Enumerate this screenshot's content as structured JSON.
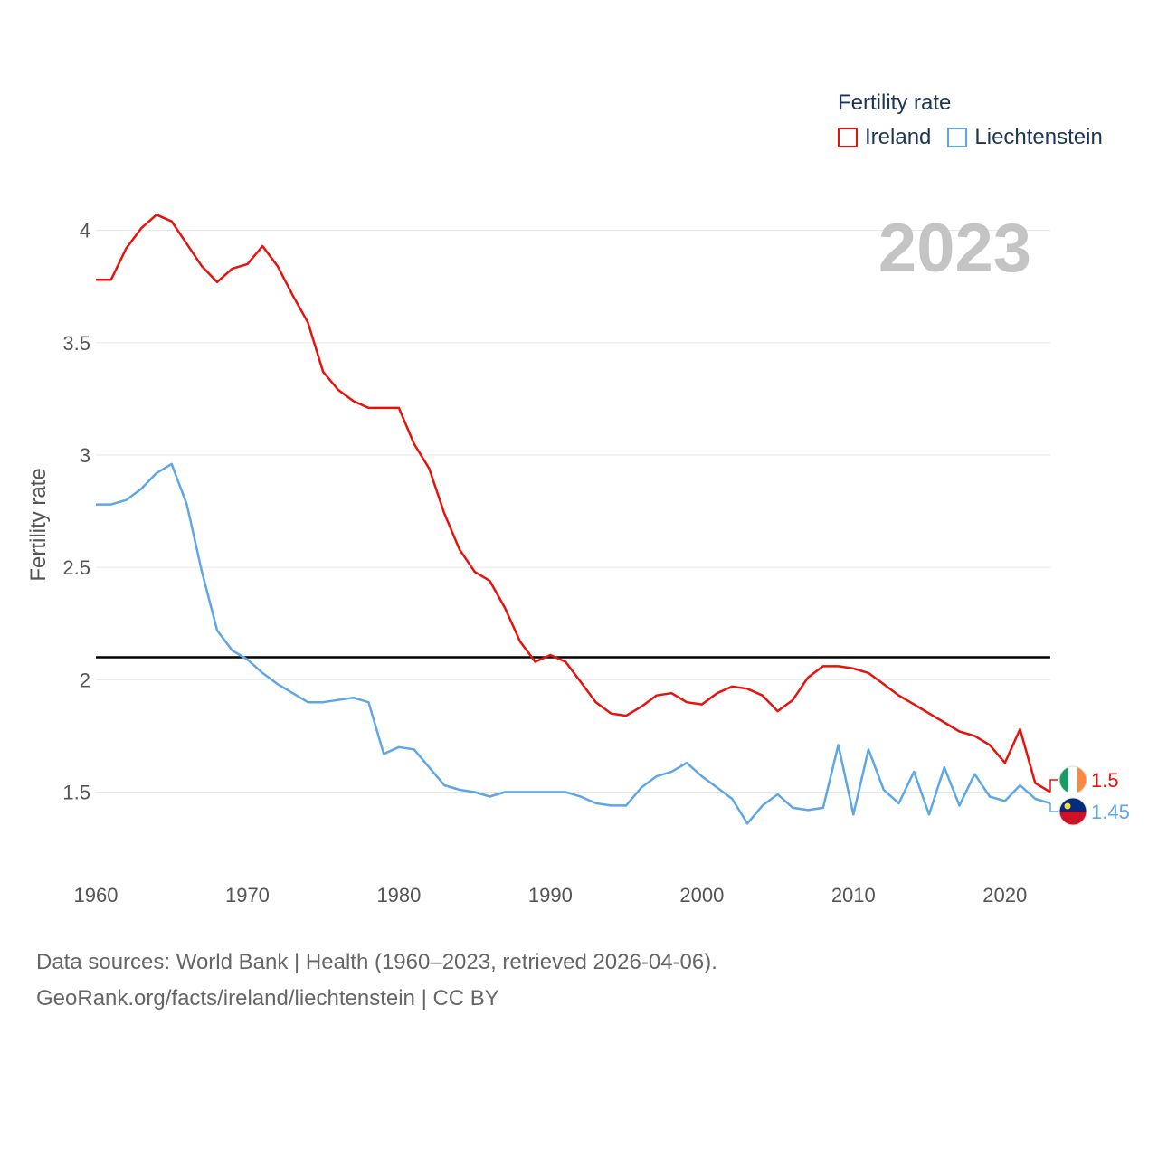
{
  "legend": {
    "title": "Fertility rate",
    "items": [
      {
        "label": "Ireland",
        "color": "#e8120c"
      },
      {
        "label": "Liechtenstein",
        "color": "#5ea7e6"
      }
    ]
  },
  "sources": {
    "line1": "Data sources: World Bank | Health (1960–2023, retrieved 2026-04-06).",
    "line2": "GeoRank.org/facts/ireland/liechtenstein | CC BY"
  },
  "chart_data": {
    "type": "line",
    "title": "Fertility rate",
    "year_label": "2023",
    "ylabel": "Fertility rate",
    "xlabel": "",
    "xlim": [
      1960,
      2023
    ],
    "ylim": [
      1.2,
      4.2
    ],
    "x_ticks": [
      "1960",
      "1970",
      "1980",
      "1990",
      "2000",
      "2010",
      "2020"
    ],
    "y_ticks": [
      "1.5",
      "2",
      "2.5",
      "3",
      "3.5",
      "4"
    ],
    "reference_line": {
      "value": 2.1,
      "color": "#000000"
    },
    "x": [
      1960,
      1961,
      1962,
      1963,
      1964,
      1965,
      1966,
      1967,
      1968,
      1969,
      1970,
      1971,
      1972,
      1973,
      1974,
      1975,
      1976,
      1977,
      1978,
      1979,
      1980,
      1981,
      1982,
      1983,
      1984,
      1985,
      1986,
      1987,
      1988,
      1989,
      1990,
      1991,
      1992,
      1993,
      1994,
      1995,
      1996,
      1997,
      1998,
      1999,
      2000,
      2001,
      2002,
      2003,
      2004,
      2005,
      2006,
      2007,
      2008,
      2009,
      2010,
      2011,
      2012,
      2013,
      2014,
      2015,
      2016,
      2017,
      2018,
      2019,
      2020,
      2021,
      2022,
      2023
    ],
    "series": [
      {
        "name": "Ireland",
        "color": "#e8120c",
        "end_label": "1.5",
        "values": [
          3.78,
          3.78,
          3.92,
          4.01,
          4.07,
          4.04,
          3.94,
          3.84,
          3.77,
          3.83,
          3.85,
          3.93,
          3.84,
          3.71,
          3.59,
          3.37,
          3.29,
          3.24,
          3.21,
          3.21,
          3.21,
          3.05,
          2.94,
          2.74,
          2.58,
          2.48,
          2.44,
          2.32,
          2.17,
          2.08,
          2.11,
          2.08,
          1.99,
          1.9,
          1.85,
          1.84,
          1.88,
          1.93,
          1.94,
          1.9,
          1.89,
          1.94,
          1.97,
          1.96,
          1.93,
          1.86,
          1.91,
          2.01,
          2.06,
          2.06,
          2.05,
          2.03,
          1.98,
          1.93,
          1.89,
          1.85,
          1.81,
          1.77,
          1.75,
          1.71,
          1.63,
          1.78,
          1.54,
          1.5
        ]
      },
      {
        "name": "Liechtenstein",
        "color": "#5ea7e6",
        "end_label": "1.45",
        "values": [
          2.78,
          2.78,
          2.8,
          2.85,
          2.92,
          2.96,
          2.78,
          2.48,
          2.22,
          2.13,
          2.09,
          2.03,
          1.98,
          1.94,
          1.9,
          1.9,
          1.91,
          1.92,
          1.9,
          1.67,
          1.7,
          1.69,
          1.61,
          1.53,
          1.51,
          1.5,
          1.48,
          1.5,
          1.5,
          1.5,
          1.5,
          1.5,
          1.48,
          1.45,
          1.44,
          1.44,
          1.52,
          1.57,
          1.59,
          1.63,
          1.57,
          1.52,
          1.47,
          1.36,
          1.44,
          1.49,
          1.43,
          1.42,
          1.43,
          1.71,
          1.4,
          1.69,
          1.51,
          1.45,
          1.59,
          1.4,
          1.61,
          1.44,
          1.58,
          1.48,
          1.46,
          1.53,
          1.47,
          1.45
        ]
      }
    ]
  }
}
